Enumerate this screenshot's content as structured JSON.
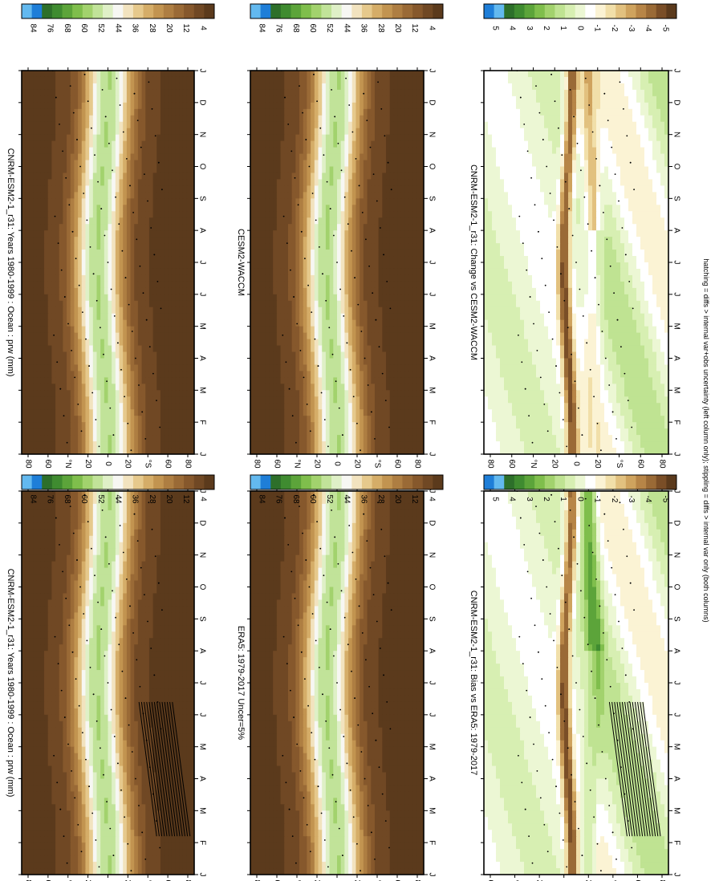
{
  "figure": {
    "footnote": "hatching = diffs > internal var+obs uncertainty (left column only); stippling = diffs > internal var only (both columns)"
  },
  "colors": {
    "prw_scale": [
      "#5b3a1c",
      "#704824",
      "#86582c",
      "#9a6a36",
      "#ae7e42",
      "#c29450",
      "#d5ad68",
      "#e6c98c",
      "#f2e3bf",
      "#f7f7f3",
      "#dff0c7",
      "#c1e399",
      "#a2d26d",
      "#7fbe4c",
      "#5ca43a",
      "#3f8b30",
      "#2d6f2a",
      "#1e7ed8",
      "#63b9ef"
    ],
    "diff_scale": [
      "#5b3a1c",
      "#7a4e27",
      "#9a6a36",
      "#b78547",
      "#cfa35e",
      "#e2c17f",
      "#f1dfa9",
      "#fbf3d4",
      "#ffffff",
      "#ecf7d4",
      "#d7efb2",
      "#bfe392",
      "#a2d26d",
      "#7fbe4c",
      "#5ca43a",
      "#3f8b30",
      "#2d6f2a",
      "#63b9ef",
      "#1e7ed8"
    ]
  },
  "chart_data": [
    {
      "panel": "top-left",
      "type": "heatmap",
      "title": "CNRM-ESM2-1_r31: Years 1980-1999 : Ocean : prw (mm)",
      "x_ticks": [
        "J",
        "F",
        "M",
        "A",
        "M",
        "J",
        "J",
        "A",
        "S",
        "O",
        "N",
        "D",
        "J"
      ],
      "y_ticks": [
        "80",
        "60",
        "°N",
        "20",
        "0",
        "20",
        "°S",
        "60",
        "80"
      ],
      "colorbar_labels": [
        "84",
        "76",
        "68",
        "60",
        "52",
        "44",
        "36",
        "28",
        "20",
        "12",
        "4"
      ],
      "scale": "prw",
      "hatching": true
    },
    {
      "panel": "top-right",
      "type": "heatmap",
      "title": "CNRM-ESM2-1_r31: Years 1980-1999 : Ocean : prw (mm)",
      "x_ticks": [
        "J",
        "F",
        "M",
        "A",
        "M",
        "J",
        "J",
        "A",
        "S",
        "O",
        "N",
        "D",
        "J"
      ],
      "y_ticks": [
        "80",
        "60",
        "°N",
        "20",
        "0",
        "20",
        "°S",
        "60",
        "80"
      ],
      "colorbar_labels": [
        "84",
        "76",
        "68",
        "60",
        "52",
        "44",
        "36",
        "28",
        "20",
        "12",
        "4"
      ],
      "scale": "prw",
      "hatching": false
    },
    {
      "panel": "middle-left",
      "type": "heatmap",
      "title": "ERA5: 1979-2017 Uncer=5%",
      "x_ticks": [
        "J",
        "F",
        "M",
        "A",
        "M",
        "J",
        "J",
        "A",
        "S",
        "O",
        "N",
        "D",
        "J"
      ],
      "y_ticks": [
        "80",
        "60",
        "°N",
        "20",
        "0",
        "20",
        "°S",
        "60",
        "80"
      ],
      "colorbar_labels": [
        "84",
        "76",
        "68",
        "60",
        "52",
        "44",
        "36",
        "28",
        "20",
        "12",
        "4"
      ],
      "scale": "prw",
      "hatching": false
    },
    {
      "panel": "middle-right",
      "type": "heatmap",
      "title": "CESM2-WACCM",
      "x_ticks": [
        "J",
        "F",
        "M",
        "A",
        "M",
        "J",
        "J",
        "A",
        "S",
        "O",
        "N",
        "D",
        "J"
      ],
      "y_ticks": [
        "80",
        "60",
        "°N",
        "20",
        "0",
        "20",
        "°S",
        "60",
        "80"
      ],
      "colorbar_labels": [
        "84",
        "76",
        "68",
        "60",
        "52",
        "44",
        "36",
        "28",
        "20",
        "12",
        "4"
      ],
      "scale": "prw",
      "hatching": false
    },
    {
      "panel": "bottom-left",
      "type": "heatmap",
      "title": "CNRM-ESM2-1_r31: Bias vs ERA5: 1979-2017",
      "x_ticks": [
        "J",
        "F",
        "M",
        "A",
        "M",
        "J",
        "J",
        "A",
        "S",
        "O",
        "N",
        "D",
        "J"
      ],
      "y_ticks": [
        "20",
        "0",
        "20",
        "°S",
        "60",
        "80"
      ],
      "y_ticks_top": [
        "60",
        "°N"
      ],
      "colorbar_labels": [
        "5",
        "4",
        "3",
        "2",
        "1",
        "0",
        "-1",
        "-2",
        "-3",
        "-4",
        "-5"
      ],
      "scale": "diff",
      "hatching": true
    },
    {
      "panel": "bottom-right",
      "type": "heatmap",
      "title": "CNRM-ESM2-1_r31: Change vs CESM2-WACCM",
      "x_ticks": [
        "J",
        "F",
        "M",
        "A",
        "M",
        "J",
        "J",
        "A",
        "S",
        "O",
        "N",
        "D",
        "J"
      ],
      "y_ticks": [
        "80",
        "60",
        "°N",
        "20",
        "0",
        "20",
        "°S",
        "60",
        "80"
      ],
      "colorbar_labels": [
        "5",
        "4",
        "3",
        "2",
        "1",
        "0",
        "-1",
        "-2",
        "-3",
        "-4",
        "-5"
      ],
      "scale": "diff",
      "hatching": false
    }
  ]
}
